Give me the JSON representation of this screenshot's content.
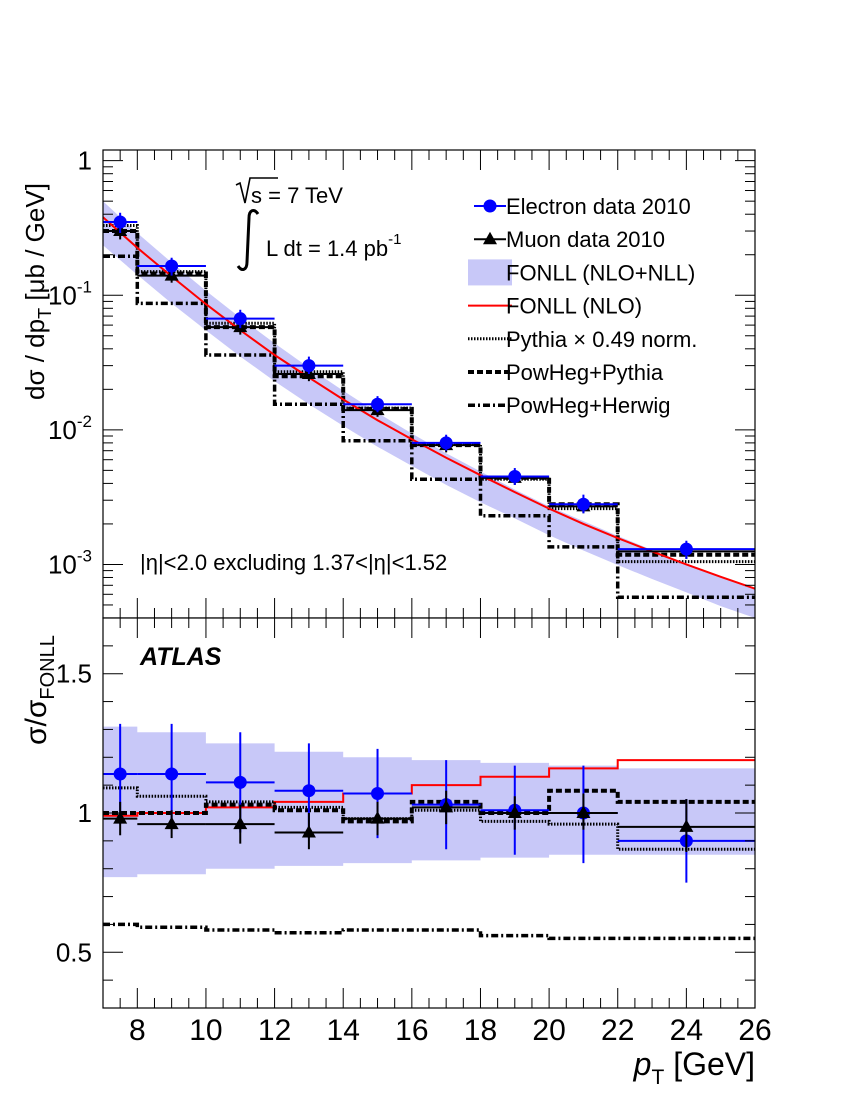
{
  "chart_data": [
    {
      "type": "line",
      "panel": "top",
      "ylabel": {
        "main": "dσ / dp",
        "sub": "T",
        "rest": "  [μb / GeV]"
      },
      "yscale": "log",
      "ylim": [
        0.0004,
        1.2
      ],
      "xlim": [
        7,
        26
      ],
      "y_tick_labels": [
        {
          "v": 1,
          "base": "1",
          "exp": ""
        },
        {
          "v": 0.1,
          "base": "10",
          "exp": "-1"
        },
        {
          "v": 0.01,
          "base": "10",
          "exp": "-2"
        },
        {
          "v": 0.001,
          "base": "10",
          "exp": "-3"
        }
      ],
      "annotations": {
        "sqrt_s": "s = 7 TeV",
        "lumi": "L dt = 1.4 pb",
        "lumi_exp": "-1",
        "eta_cut": "|η|<2.0 excluding 1.37<|η|<1.52"
      },
      "legend": {
        "placement": "top-right",
        "entries": [
          {
            "label": "Electron data 2010",
            "style": "electron"
          },
          {
            "label": "Muon data 2010",
            "style": "muon"
          },
          {
            "label": "FONLL (NLO+NLL)",
            "style": "band"
          },
          {
            "label": "FONLL (NLO)",
            "style": "nlo"
          },
          {
            "label": "Pythia × 0.49 norm.",
            "style": "pythia"
          },
          {
            "label": "PowHeg+Pythia",
            "style": "powpy"
          },
          {
            "label": "PowHeg+Herwig",
            "style": "powhw"
          }
        ]
      },
      "series": [
        {
          "name": "Electron data 2010",
          "color": "#0000ff",
          "points": [
            {
              "x": 7.5,
              "xlo": 7,
              "xhi": 8,
              "y": 0.35,
              "ylo": 0.29,
              "yhi": 0.41
            },
            {
              "x": 9,
              "xlo": 8,
              "xhi": 10,
              "y": 0.165,
              "ylo": 0.14,
              "yhi": 0.19
            },
            {
              "x": 11,
              "xlo": 10,
              "xhi": 12,
              "y": 0.067,
              "ylo": 0.057,
              "yhi": 0.078
            },
            {
              "x": 13,
              "xlo": 12,
              "xhi": 14,
              "y": 0.03,
              "ylo": 0.026,
              "yhi": 0.035
            },
            {
              "x": 15,
              "xlo": 14,
              "xhi": 16,
              "y": 0.0155,
              "ylo": 0.0135,
              "yhi": 0.0178
            },
            {
              "x": 17,
              "xlo": 16,
              "xhi": 18,
              "y": 0.008,
              "ylo": 0.007,
              "yhi": 0.0092
            },
            {
              "x": 19,
              "xlo": 18,
              "xhi": 20,
              "y": 0.0045,
              "ylo": 0.0039,
              "yhi": 0.0052
            },
            {
              "x": 21,
              "xlo": 20,
              "xhi": 22,
              "y": 0.0028,
              "ylo": 0.0024,
              "yhi": 0.0033
            },
            {
              "x": 24,
              "xlo": 22,
              "xhi": 26,
              "y": 0.0013,
              "ylo": 0.0011,
              "yhi": 0.0015
            }
          ]
        },
        {
          "name": "Muon data 2010",
          "color": "#000000",
          "points": [
            {
              "x": 7.5,
              "xlo": 7,
              "xhi": 8,
              "y": 0.3,
              "ylo": 0.26,
              "yhi": 0.34
            },
            {
              "x": 9,
              "xlo": 8,
              "xhi": 10,
              "y": 0.14,
              "ylo": 0.124,
              "yhi": 0.157
            },
            {
              "x": 11,
              "xlo": 10,
              "xhi": 12,
              "y": 0.058,
              "ylo": 0.051,
              "yhi": 0.065
            },
            {
              "x": 13,
              "xlo": 12,
              "xhi": 14,
              "y": 0.026,
              "ylo": 0.023,
              "yhi": 0.029
            },
            {
              "x": 15,
              "xlo": 14,
              "xhi": 16,
              "y": 0.014,
              "ylo": 0.0125,
              "yhi": 0.0157
            },
            {
              "x": 17,
              "xlo": 16,
              "xhi": 18,
              "y": 0.0077,
              "ylo": 0.0068,
              "yhi": 0.0087
            },
            {
              "x": 19,
              "xlo": 18,
              "xhi": 20,
              "y": 0.0044,
              "ylo": 0.0039,
              "yhi": 0.005
            },
            {
              "x": 21,
              "xlo": 20,
              "xhi": 22,
              "y": 0.0027,
              "ylo": 0.0024,
              "yhi": 0.0031
            },
            {
              "x": 24,
              "xlo": 22,
              "xhi": 26,
              "y": 0.00125,
              "ylo": 0.0011,
              "yhi": 0.0014
            }
          ]
        },
        {
          "name": "FONLL (NLO+NLL)",
          "kind": "band",
          "color": "#c8c8f8",
          "x": [
            7,
            8,
            9,
            10,
            11,
            12,
            13,
            14,
            15,
            16,
            17,
            18,
            19,
            20,
            21,
            22,
            23,
            24,
            25,
            26
          ],
          "low": [
            0.235,
            0.142,
            0.087,
            0.055,
            0.035,
            0.023,
            0.0155,
            0.0107,
            0.0075,
            0.0054,
            0.0039,
            0.0029,
            0.0022,
            0.00165,
            0.00127,
            0.00099,
            0.00078,
            0.00062,
            0.00049,
            0.0004
          ],
          "high": [
            0.5,
            0.29,
            0.175,
            0.108,
            0.068,
            0.044,
            0.029,
            0.0195,
            0.0134,
            0.0094,
            0.0067,
            0.0049,
            0.0036,
            0.0027,
            0.0021,
            0.00163,
            0.00128,
            0.00101,
            0.00081,
            0.00065
          ]
        },
        {
          "name": "FONLL (NLO)",
          "kind": "curve",
          "color": "#ff0000",
          "x": [
            7,
            8,
            9,
            10,
            11,
            12,
            13,
            14,
            15,
            16,
            17,
            18,
            19,
            20,
            21,
            22,
            23,
            24,
            25,
            26
          ],
          "y": [
            0.38,
            0.225,
            0.138,
            0.086,
            0.055,
            0.036,
            0.0245,
            0.0168,
            0.0118,
            0.0085,
            0.0062,
            0.0046,
            0.00345,
            0.0026,
            0.002,
            0.00157,
            0.00125,
            0.001,
            0.00081,
            0.00066
          ]
        },
        {
          "name": "Pythia × 0.49 norm.",
          "kind": "step",
          "color": "#000000",
          "edges": [
            7,
            8,
            10,
            12,
            14,
            16,
            18,
            20,
            22,
            26
          ],
          "y": [
            0.33,
            0.15,
            0.062,
            0.027,
            0.0145,
            0.0078,
            0.0043,
            0.0026,
            0.00105
          ]
        },
        {
          "name": "PowHeg+Pythia",
          "kind": "step",
          "color": "#000000",
          "edges": [
            7,
            8,
            10,
            12,
            14,
            16,
            18,
            20,
            22,
            26
          ],
          "y": [
            0.3,
            0.145,
            0.058,
            0.025,
            0.0143,
            0.0077,
            0.0044,
            0.0028,
            0.00118
          ]
        },
        {
          "name": "PowHeg+Herwig",
          "kind": "step",
          "color": "#000000",
          "edges": [
            7,
            8,
            10,
            12,
            14,
            16,
            18,
            20,
            22,
            26
          ],
          "y": [
            0.195,
            0.087,
            0.036,
            0.0155,
            0.0083,
            0.0043,
            0.0023,
            0.00135,
            0.00057
          ]
        }
      ]
    },
    {
      "type": "line",
      "panel": "bottom",
      "ylabel": {
        "main": "σ/σ",
        "sub": "FONLL"
      },
      "yscale": "linear",
      "ylim": [
        0.3,
        1.7
      ],
      "xlim": [
        7,
        26
      ],
      "xlabel": {
        "main": "p",
        "sub": "T",
        "rest": " [GeV]"
      },
      "x_tick_labels": [
        "8",
        "10",
        "12",
        "14",
        "16",
        "18",
        "20",
        "22",
        "24",
        "26"
      ],
      "y_tick_labels": [
        "0.5",
        "1",
        "1.5"
      ],
      "atlas_label": "ATLAS",
      "series": [
        {
          "name": "FONLL (NLO+NLL)",
          "kind": "band",
          "color": "#c8c8f8",
          "edges": [
            7,
            8,
            10,
            12,
            14,
            16,
            18,
            20,
            22,
            26
          ],
          "low": [
            0.77,
            0.78,
            0.8,
            0.81,
            0.82,
            0.83,
            0.84,
            0.85,
            0.85
          ],
          "high": [
            1.31,
            1.29,
            1.25,
            1.22,
            1.2,
            1.19,
            1.18,
            1.17,
            1.16
          ]
        },
        {
          "name": "FONLL (NLO)",
          "kind": "step",
          "color": "#ff0000",
          "edges": [
            7,
            8,
            10,
            12,
            14,
            16,
            18,
            20,
            22,
            26
          ],
          "y": [
            0.99,
            1.0,
            1.02,
            1.04,
            1.07,
            1.1,
            1.13,
            1.16,
            1.19
          ]
        },
        {
          "name": "Pythia × 0.49 norm.",
          "kind": "step",
          "color": "#000000",
          "edges": [
            7,
            8,
            10,
            12,
            14,
            16,
            18,
            20,
            22,
            26
          ],
          "y": [
            1.09,
            1.06,
            1.04,
            1.02,
            0.98,
            1.01,
            0.97,
            0.96,
            0.87
          ]
        },
        {
          "name": "PowHeg+Pythia",
          "kind": "step",
          "color": "#000000",
          "edges": [
            7,
            8,
            10,
            12,
            14,
            16,
            18,
            20,
            22,
            26
          ],
          "y": [
            1.0,
            1.0,
            1.03,
            1.01,
            0.97,
            1.04,
            1.0,
            1.08,
            1.04
          ]
        },
        {
          "name": "PowHeg+Herwig",
          "kind": "step",
          "color": "#000000",
          "edges": [
            7,
            8,
            10,
            12,
            14,
            16,
            18,
            20,
            22,
            26
          ],
          "y": [
            0.6,
            0.59,
            0.58,
            0.57,
            0.58,
            0.58,
            0.56,
            0.55,
            0.55
          ]
        },
        {
          "name": "Electron data 2010",
          "color": "#0000ff",
          "points": [
            {
              "x": 7.5,
              "xlo": 7,
              "xhi": 8,
              "y": 1.14,
              "ylo": 0.96,
              "yhi": 1.32
            },
            {
              "x": 9,
              "xlo": 8,
              "xhi": 10,
              "y": 1.14,
              "ylo": 0.96,
              "yhi": 1.32
            },
            {
              "x": 11,
              "xlo": 10,
              "xhi": 12,
              "y": 1.11,
              "ylo": 0.93,
              "yhi": 1.29
            },
            {
              "x": 13,
              "xlo": 12,
              "xhi": 14,
              "y": 1.08,
              "ylo": 0.91,
              "yhi": 1.25
            },
            {
              "x": 15,
              "xlo": 14,
              "xhi": 16,
              "y": 1.07,
              "ylo": 0.91,
              "yhi": 1.23
            },
            {
              "x": 17,
              "xlo": 16,
              "xhi": 18,
              "y": 1.03,
              "ylo": 0.87,
              "yhi": 1.19
            },
            {
              "x": 19,
              "xlo": 18,
              "xhi": 20,
              "y": 1.01,
              "ylo": 0.85,
              "yhi": 1.17
            },
            {
              "x": 21,
              "xlo": 20,
              "xhi": 22,
              "y": 1.0,
              "ylo": 0.82,
              "yhi": 1.17
            },
            {
              "x": 24,
              "xlo": 22,
              "xhi": 26,
              "y": 0.9,
              "ylo": 0.75,
              "yhi": 1.05
            }
          ]
        },
        {
          "name": "Muon data 2010",
          "color": "#000000",
          "points": [
            {
              "x": 7.5,
              "xlo": 7,
              "xhi": 8,
              "y": 0.98,
              "ylo": 0.92,
              "yhi": 1.04
            },
            {
              "x": 9,
              "xlo": 8,
              "xhi": 10,
              "y": 0.96,
              "ylo": 0.91,
              "yhi": 1.01
            },
            {
              "x": 11,
              "xlo": 10,
              "xhi": 12,
              "y": 0.96,
              "ylo": 0.89,
              "yhi": 1.03
            },
            {
              "x": 13,
              "xlo": 12,
              "xhi": 14,
              "y": 0.93,
              "ylo": 0.87,
              "yhi": 1.0
            },
            {
              "x": 15,
              "xlo": 14,
              "xhi": 16,
              "y": 0.98,
              "ylo": 0.92,
              "yhi": 1.04
            },
            {
              "x": 17,
              "xlo": 16,
              "xhi": 18,
              "y": 1.02,
              "ylo": 0.96,
              "yhi": 1.08
            },
            {
              "x": 19,
              "xlo": 18,
              "xhi": 20,
              "y": 1.0,
              "ylo": 0.94,
              "yhi": 1.06
            },
            {
              "x": 21,
              "xlo": 20,
              "xhi": 22,
              "y": 1.0,
              "ylo": 0.94,
              "yhi": 1.07
            },
            {
              "x": 24,
              "xlo": 22,
              "xhi": 26,
              "y": 0.95,
              "ylo": 0.86,
              "yhi": 1.05
            }
          ]
        }
      ]
    }
  ]
}
